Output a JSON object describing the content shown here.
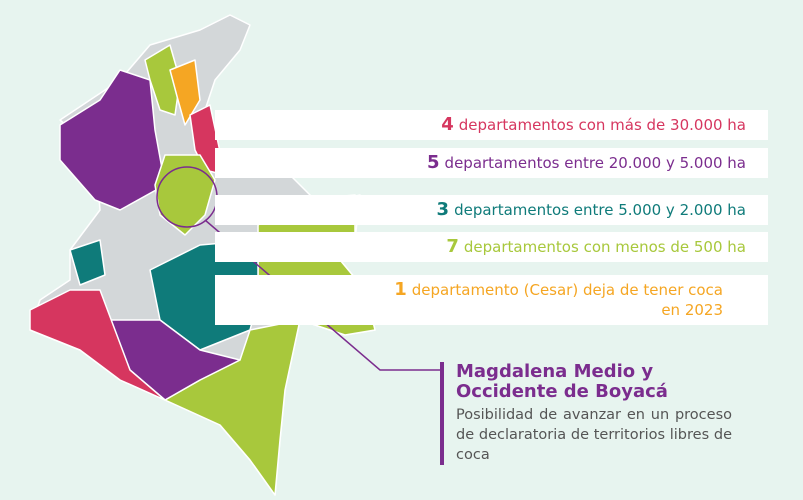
{
  "legend": [
    {
      "count": "4",
      "text": "departamentos con más de 30.000 ha",
      "color": "#d6365f"
    },
    {
      "count": "5",
      "text": "departamentos entre 20.000 y 5.000 ha",
      "color": "#7b2d8e"
    },
    {
      "count": "3",
      "text": "departamentos entre 5.000 y 2.000 ha",
      "color": "#0f7b7a"
    },
    {
      "count": "7",
      "text": "departamentos con menos de 500 ha",
      "color": "#a8c83c"
    },
    {
      "count": "1",
      "text": "departamento (Cesar) deja de tener coca en 2023",
      "color": "#f5a623"
    }
  ],
  "callout": {
    "title": "Magdalena Medio y Occidente de Boyacá",
    "body": "Posibilidad de avanzar en un proceso de declaratoria de territorios libres de coca"
  }
}
